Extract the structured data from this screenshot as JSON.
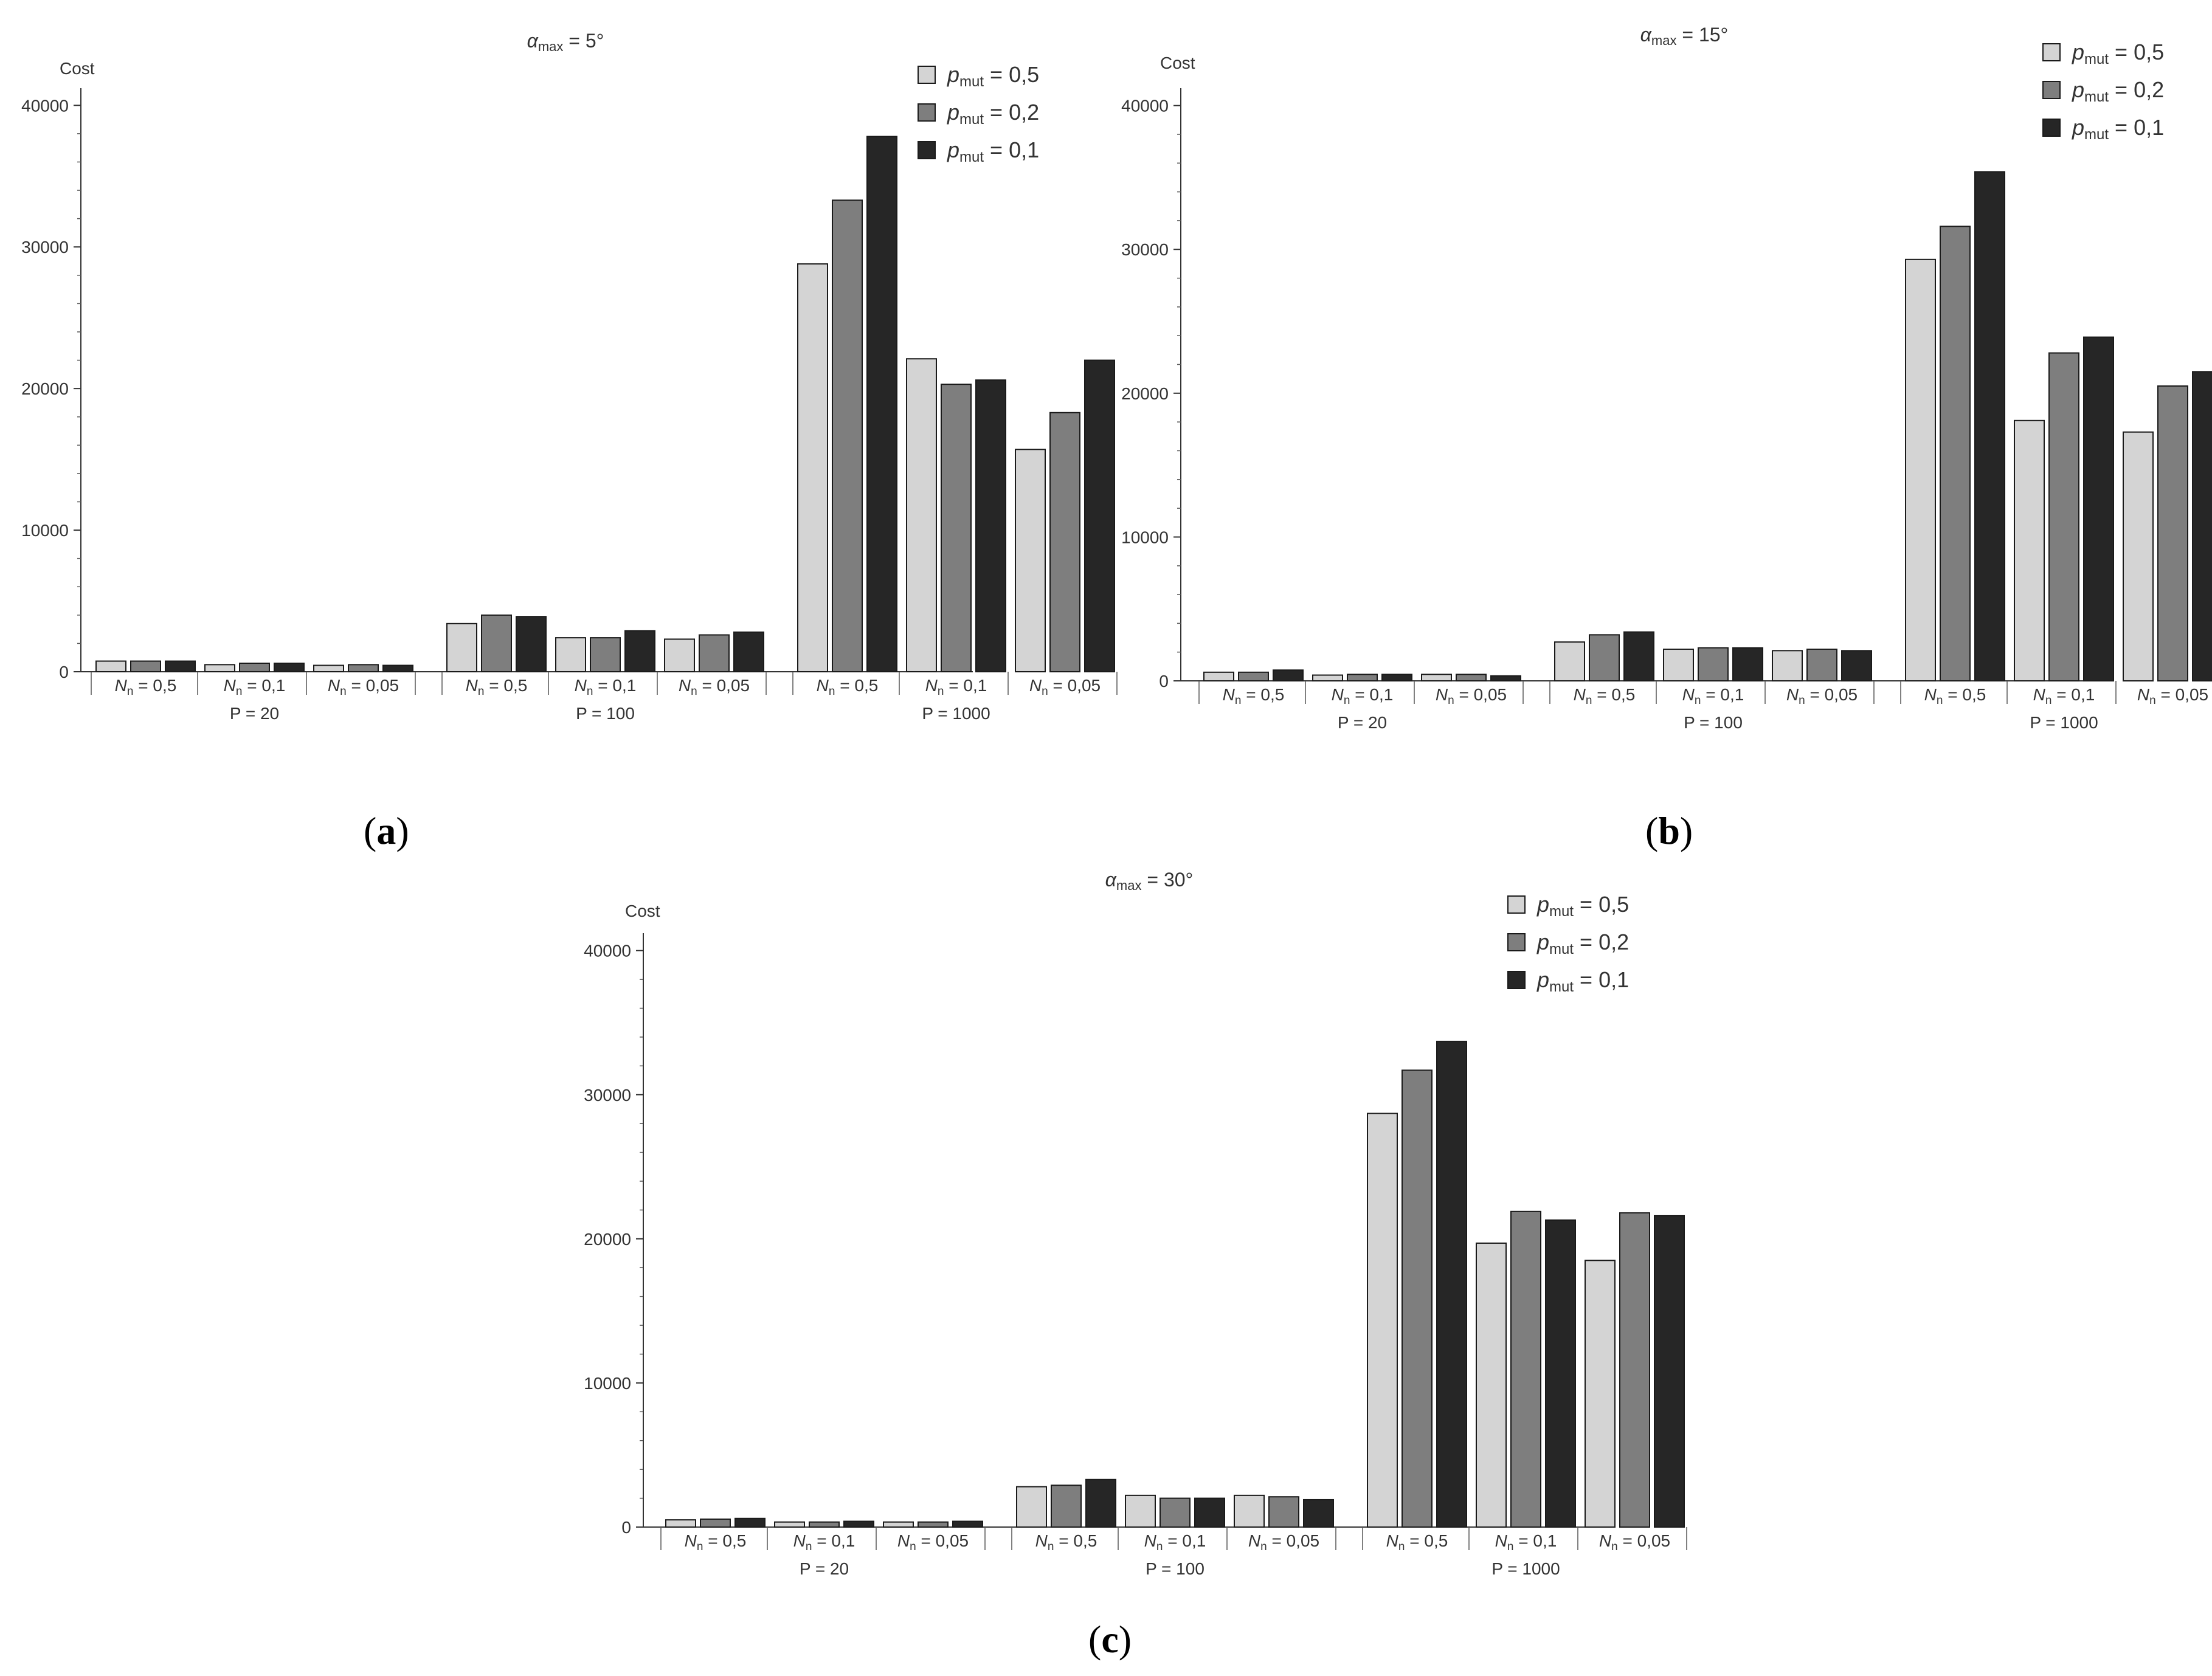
{
  "figure": {
    "panels": [
      {
        "id": "a",
        "subfigure_label": "a",
        "title_base": "α",
        "title_sub": "max",
        "title_value": " = 5°",
        "ylabel": "Cost",
        "yticks": [
          "0",
          "10000",
          "20000",
          "30000",
          "40000"
        ],
        "ylim": [
          0,
          41000
        ],
        "legend_position": "top-right",
        "legend": [
          {
            "base": "p",
            "sub": "mut",
            "value": " = 0,5",
            "color": "#d4d4d4"
          },
          {
            "base": "p",
            "sub": "mut",
            "value": " = 0,2",
            "color": "#7e7e7e"
          },
          {
            "base": "p",
            "sub": "mut",
            "value": " = 0,1",
            "color": "#262626"
          }
        ],
        "groups": [
          {
            "label": "P = 20",
            "subgroups": [
              {
                "base": "N",
                "sub": "n",
                "value": " = 0,5",
                "values": [
                  750,
                  750,
                  750
                ]
              },
              {
                "base": "N",
                "sub": "n",
                "value": " = 0,1",
                "values": [
                  500,
                  600,
                  600
                ]
              },
              {
                "base": "N",
                "sub": "n",
                "value": " = 0,05",
                "values": [
                  450,
                  500,
                  450
                ]
              }
            ]
          },
          {
            "label": "P = 100",
            "subgroups": [
              {
                "base": "N",
                "sub": "n",
                "value": " = 0,5",
                "values": [
                  3400,
                  4000,
                  3900
                ]
              },
              {
                "base": "N",
                "sub": "n",
                "value": " = 0,1",
                "values": [
                  2400,
                  2400,
                  2900
                ]
              },
              {
                "base": "N",
                "sub": "n",
                "value": " = 0,05",
                "values": [
                  2300,
                  2600,
                  2800
                ]
              }
            ]
          },
          {
            "label": "P = 1000",
            "subgroups": [
              {
                "base": "N",
                "sub": "n",
                "value": " = 0,5",
                "values": [
                  28800,
                  33300,
                  37800
                ]
              },
              {
                "base": "N",
                "sub": "n",
                "value": " = 0,1",
                "values": [
                  22100,
                  20300,
                  20600
                ]
              },
              {
                "base": "N",
                "sub": "n",
                "value": " = 0,05",
                "values": [
                  15700,
                  18300,
                  22000
                ]
              }
            ]
          }
        ]
      },
      {
        "id": "b",
        "subfigure_label": "b",
        "title_base": "α",
        "title_sub": "max",
        "title_value": " = 15°",
        "ylabel": "Cost",
        "yticks": [
          "0",
          "10000",
          "20000",
          "30000",
          "40000"
        ],
        "ylim": [
          0,
          41000
        ],
        "legend_position": "top-right",
        "legend": [
          {
            "base": "p",
            "sub": "mut",
            "value": " = 0,5",
            "color": "#d4d4d4"
          },
          {
            "base": "p",
            "sub": "mut",
            "value": " = 0,2",
            "color": "#7e7e7e"
          },
          {
            "base": "p",
            "sub": "mut",
            "value": " = 0,1",
            "color": "#262626"
          }
        ],
        "groups": [
          {
            "label": "P = 20",
            "subgroups": [
              {
                "base": "N",
                "sub": "n",
                "value": " = 0,5",
                "values": [
                  600,
                  600,
                  750
                ]
              },
              {
                "base": "N",
                "sub": "n",
                "value": " = 0,1",
                "values": [
                  400,
                  450,
                  450
                ]
              },
              {
                "base": "N",
                "sub": "n",
                "value": " = 0,05",
                "values": [
                  450,
                  450,
                  350
                ]
              }
            ]
          },
          {
            "label": "P = 100",
            "subgroups": [
              {
                "base": "N",
                "sub": "n",
                "value": " = 0,5",
                "values": [
                  2700,
                  3200,
                  3400
                ]
              },
              {
                "base": "N",
                "sub": "n",
                "value": " = 0,1",
                "values": [
                  2200,
                  2300,
                  2300
                ]
              },
              {
                "base": "N",
                "sub": "n",
                "value": " = 0,05",
                "values": [
                  2100,
                  2200,
                  2100
                ]
              }
            ]
          },
          {
            "label": "P = 1000",
            "subgroups": [
              {
                "base": "N",
                "sub": "n",
                "value": " = 0,5",
                "values": [
                  29300,
                  31600,
                  35400
                ]
              },
              {
                "base": "N",
                "sub": "n",
                "value": " = 0,1",
                "values": [
                  18100,
                  22800,
                  23900
                ]
              },
              {
                "base": "N",
                "sub": "n",
                "value": " = 0,05",
                "values": [
                  17300,
                  20500,
                  21500
                ]
              }
            ]
          }
        ]
      },
      {
        "id": "c",
        "subfigure_label": "c",
        "title_base": "α",
        "title_sub": "max",
        "title_value": " = 30°",
        "ylabel": "Cost",
        "yticks": [
          "0",
          "10000",
          "20000",
          "30000",
          "40000"
        ],
        "ylim": [
          0,
          41000
        ],
        "legend_position": "top-right",
        "legend": [
          {
            "base": "p",
            "sub": "mut",
            "value": " = 0,5",
            "color": "#d4d4d4"
          },
          {
            "base": "p",
            "sub": "mut",
            "value": " = 0,2",
            "color": "#7e7e7e"
          },
          {
            "base": "p",
            "sub": "mut",
            "value": " = 0,1",
            "color": "#262626"
          }
        ],
        "groups": [
          {
            "label": "P = 20",
            "subgroups": [
              {
                "base": "N",
                "sub": "n",
                "value": " = 0,5",
                "values": [
                  500,
                  550,
                  600
                ]
              },
              {
                "base": "N",
                "sub": "n",
                "value": " = 0,1",
                "values": [
                  350,
                  350,
                  400
                ]
              },
              {
                "base": "N",
                "sub": "n",
                "value": " = 0,05",
                "values": [
                  350,
                  350,
                  400
                ]
              }
            ]
          },
          {
            "label": "P = 100",
            "subgroups": [
              {
                "base": "N",
                "sub": "n",
                "value": " = 0,5",
                "values": [
                  2800,
                  2900,
                  3300
                ]
              },
              {
                "base": "N",
                "sub": "n",
                "value": " = 0,1",
                "values": [
                  2200,
                  2000,
                  2000
                ]
              },
              {
                "base": "N",
                "sub": "n",
                "value": " = 0,05",
                "values": [
                  2200,
                  2100,
                  1900
                ]
              }
            ]
          },
          {
            "label": "P = 1000",
            "subgroups": [
              {
                "base": "N",
                "sub": "n",
                "value": " = 0,5",
                "values": [
                  28700,
                  31700,
                  33700
                ]
              },
              {
                "base": "N",
                "sub": "n",
                "value": " = 0,1",
                "values": [
                  19700,
                  21900,
                  21300
                ]
              },
              {
                "base": "N",
                "sub": "n",
                "value": " = 0,05",
                "values": [
                  18500,
                  21800,
                  21600
                ]
              }
            ]
          }
        ]
      }
    ]
  },
  "chart_data": [
    {
      "type": "bar",
      "title": "α max = 5°",
      "ylabel": "Cost",
      "ylim": [
        0,
        41000
      ],
      "grid": false,
      "legend_placement": "top-right",
      "group_labels": [
        "P = 20",
        "P = 100",
        "P = 1000"
      ],
      "categories": [
        "N n = 0,5",
        "N n = 0,1",
        "N n = 0,05",
        "N n = 0,5",
        "N n = 0,1",
        "N n = 0,05",
        "N n = 0,5",
        "N n = 0,1",
        "N n = 0,05"
      ],
      "series": [
        {
          "name": "p mut = 0,5",
          "values": [
            750,
            500,
            450,
            3400,
            2400,
            2300,
            28800,
            22100,
            15700
          ]
        },
        {
          "name": "p mut = 0,2",
          "values": [
            750,
            600,
            500,
            4000,
            2400,
            2600,
            33300,
            20300,
            18300
          ]
        },
        {
          "name": "p mut = 0,1",
          "values": [
            750,
            600,
            450,
            3900,
            2900,
            2800,
            37800,
            20600,
            22000
          ]
        }
      ]
    },
    {
      "type": "bar",
      "title": "α max = 15°",
      "ylabel": "Cost",
      "ylim": [
        0,
        41000
      ],
      "grid": false,
      "legend_placement": "top-right",
      "group_labels": [
        "P = 20",
        "P = 100",
        "P = 1000"
      ],
      "categories": [
        "N n = 0,5",
        "N n = 0,1",
        "N n = 0,05",
        "N n = 0,5",
        "N n = 0,1",
        "N n = 0,05",
        "N n = 0,5",
        "N n = 0,1",
        "N n = 0,05"
      ],
      "series": [
        {
          "name": "p mut = 0,5",
          "values": [
            600,
            400,
            450,
            2700,
            2200,
            2100,
            29300,
            18100,
            17300
          ]
        },
        {
          "name": "p mut = 0,2",
          "values": [
            600,
            450,
            450,
            3200,
            2300,
            2200,
            31600,
            22800,
            20500
          ]
        },
        {
          "name": "p mut = 0,1",
          "values": [
            750,
            450,
            350,
            3400,
            2300,
            2100,
            35400,
            23900,
            21500
          ]
        }
      ]
    },
    {
      "type": "bar",
      "title": "α max = 30°",
      "ylabel": "Cost",
      "ylim": [
        0,
        41000
      ],
      "grid": false,
      "legend_placement": "top-right",
      "group_labels": [
        "P = 20",
        "P = 100",
        "P = 1000"
      ],
      "categories": [
        "N n = 0,5",
        "N n = 0,1",
        "N n = 0,05",
        "N n = 0,5",
        "N n = 0,1",
        "N n = 0,05",
        "N n = 0,5",
        "N n = 0,1",
        "N n = 0,05"
      ],
      "series": [
        {
          "name": "p mut = 0,5",
          "values": [
            500,
            350,
            350,
            2800,
            2200,
            2200,
            28700,
            19700,
            18500
          ]
        },
        {
          "name": "p mut = 0,2",
          "values": [
            550,
            350,
            350,
            2900,
            2000,
            2100,
            31700,
            21900,
            21800
          ]
        },
        {
          "name": "p mut = 0,1",
          "values": [
            600,
            400,
            400,
            3300,
            2000,
            1900,
            33700,
            21300,
            21600
          ]
        }
      ]
    }
  ]
}
